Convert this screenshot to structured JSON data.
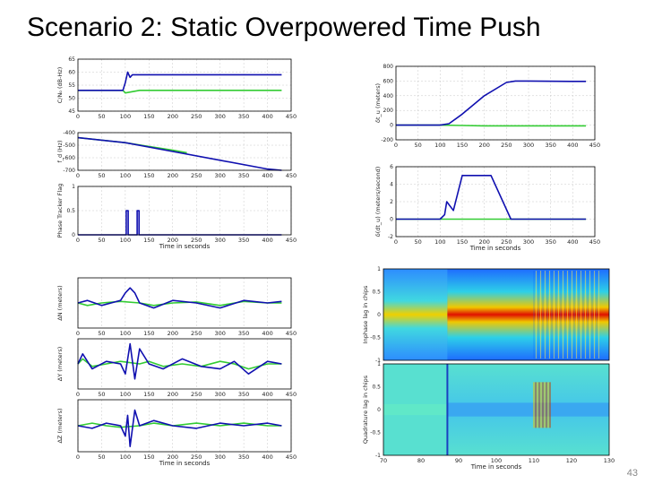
{
  "slide": {
    "title": "Scenario 2: Static Overpowered Time Push",
    "page_number": "43"
  },
  "colors": {
    "estimate": "#1010b0",
    "truth": "#33cc33",
    "axes": "#000000"
  },
  "chart_data": [
    {
      "id": "cn0",
      "type": "line",
      "ylabel": "C/N₀ (dB-Hz)",
      "xlabel": "",
      "xlim": [
        0,
        450
      ],
      "ylim": [
        45,
        65
      ],
      "xticks": [
        0,
        50,
        100,
        150,
        200,
        250,
        300,
        350,
        400,
        450
      ],
      "yticks": [
        45,
        50,
        55,
        60,
        65
      ],
      "series": [
        {
          "name": "blue",
          "x": [
            0,
            50,
            95,
            100,
            105,
            110,
            115,
            130,
            200,
            300,
            400,
            430
          ],
          "y": [
            53,
            53,
            53,
            56,
            60,
            58,
            59,
            59,
            59,
            59,
            59,
            59
          ]
        },
        {
          "name": "green",
          "x": [
            0,
            50,
            95,
            100,
            130,
            200,
            300,
            400,
            430
          ],
          "y": [
            53,
            53,
            53,
            52,
            53,
            53,
            53,
            53,
            53
          ]
        }
      ]
    },
    {
      "id": "fd",
      "type": "line",
      "ylabel": "f_d (Hz)",
      "xlabel": "",
      "xlim": [
        0,
        450
      ],
      "ylim": [
        -700,
        -400
      ],
      "xticks": [
        0,
        50,
        100,
        150,
        200,
        250,
        300,
        350,
        400,
        450
      ],
      "yticks": [
        -400,
        -500,
        -600,
        -700
      ],
      "series": [
        {
          "name": "blue",
          "x": [
            0,
            100,
            200,
            300,
            400,
            430
          ],
          "y": [
            -440,
            -480,
            -550,
            -620,
            -690,
            -700
          ]
        },
        {
          "name": "green",
          "x": [
            0,
            100,
            150,
            200,
            230
          ],
          "y": [
            -440,
            -480,
            -510,
            -540,
            -560
          ]
        }
      ]
    },
    {
      "id": "phase",
      "type": "line",
      "ylabel": "Phase Tracker Flag",
      "xlabel": "Time in seconds",
      "xlim": [
        0,
        450
      ],
      "ylim": [
        0,
        1
      ],
      "xticks": [
        0,
        50,
        100,
        150,
        200,
        250,
        300,
        350,
        400,
        450
      ],
      "yticks": [
        0,
        0.5,
        1
      ],
      "ytick_labels": [
        "0",
        "0.5",
        "1"
      ],
      "series": [
        {
          "name": "blue",
          "x": [
            0,
            102,
            102,
            106,
            106,
            125,
            125,
            129,
            129,
            430
          ],
          "y": [
            0,
            0,
            0.5,
            0.5,
            0,
            0,
            0.5,
            0.5,
            0,
            0
          ]
        }
      ]
    },
    {
      "id": "dn",
      "type": "line",
      "ylabel": "ΔN (meters)",
      "xlabel": "",
      "xlim": [
        0,
        450
      ],
      "ylim": [
        -5,
        5
      ],
      "xticks": [
        0,
        50,
        100,
        150,
        200,
        250,
        300,
        350,
        400,
        450
      ],
      "yticks": [],
      "series": [
        {
          "name": "blue",
          "x": [
            0,
            20,
            50,
            90,
            100,
            110,
            120,
            130,
            160,
            200,
            250,
            300,
            350,
            400,
            430
          ],
          "y": [
            0,
            0.5,
            -0.5,
            0.5,
            2,
            3,
            2,
            0,
            -1,
            0.5,
            0,
            -1,
            0.5,
            0,
            0.3
          ]
        },
        {
          "name": "green",
          "x": [
            0,
            20,
            50,
            90,
            130,
            160,
            200,
            250,
            300,
            350,
            400,
            430
          ],
          "y": [
            0,
            -0.5,
            0,
            0.3,
            0,
            -0.5,
            0,
            0.2,
            -0.5,
            0.3,
            0,
            0
          ]
        }
      ]
    },
    {
      "id": "de",
      "type": "line",
      "ylabel": "ΔY (meters)",
      "xlabel": "",
      "xlim": [
        0,
        450
      ],
      "ylim": [
        -5,
        5
      ],
      "xticks": [
        0,
        50,
        100,
        150,
        200,
        250,
        300,
        350,
        400,
        450
      ],
      "yticks": [],
      "series": [
        {
          "name": "blue",
          "x": [
            0,
            10,
            30,
            60,
            90,
            100,
            110,
            120,
            130,
            150,
            180,
            220,
            260,
            300,
            330,
            360,
            400,
            430
          ],
          "y": [
            0,
            2,
            -1,
            0.5,
            0,
            -2,
            4,
            -3,
            3,
            0,
            -1,
            1,
            -0.5,
            -1,
            0.5,
            -2,
            0.5,
            0
          ]
        },
        {
          "name": "green",
          "x": [
            0,
            10,
            30,
            60,
            90,
            130,
            150,
            180,
            220,
            260,
            300,
            330,
            360,
            400,
            430
          ],
          "y": [
            0,
            1,
            -0.5,
            0,
            0.5,
            0,
            0.5,
            -0.5,
            0,
            -0.5,
            0.5,
            0,
            -1,
            0,
            0
          ]
        }
      ]
    },
    {
      "id": "dz",
      "type": "line",
      "ylabel": "ΔZ (meters)",
      "xlabel": "Time in seconds",
      "xlim": [
        0,
        450
      ],
      "ylim": [
        -5,
        5
      ],
      "xticks": [
        0,
        50,
        100,
        150,
        200,
        250,
        300,
        350,
        400,
        450
      ],
      "yticks": [],
      "series": [
        {
          "name": "blue",
          "x": [
            0,
            30,
            60,
            90,
            100,
            105,
            110,
            120,
            130,
            160,
            200,
            250,
            300,
            350,
            400,
            430
          ],
          "y": [
            0,
            -0.5,
            0.5,
            0,
            -2,
            2,
            -4,
            3,
            0,
            1,
            0,
            -0.5,
            0.5,
            0,
            0.5,
            0
          ]
        },
        {
          "name": "green",
          "x": [
            0,
            30,
            60,
            90,
            130,
            160,
            200,
            250,
            300,
            350,
            400,
            430
          ],
          "y": [
            0,
            0.5,
            0,
            -0.3,
            0,
            0.5,
            0,
            0.5,
            0,
            0.5,
            0,
            0
          ]
        }
      ]
    },
    {
      "id": "dtpos",
      "type": "line",
      "ylabel": "δt_u (meters)",
      "xlabel": "",
      "xlim": [
        0,
        450
      ],
      "ylim": [
        -200,
        800
      ],
      "xticks": [
        0,
        50,
        100,
        150,
        200,
        250,
        300,
        350,
        400,
        450
      ],
      "yticks": [
        -200,
        0,
        200,
        400,
        600,
        800
      ],
      "series": [
        {
          "name": "blue",
          "x": [
            0,
            100,
            120,
            150,
            200,
            250,
            270,
            300,
            400,
            430
          ],
          "y": [
            0,
            0,
            20,
            150,
            400,
            580,
            600,
            600,
            595,
            595
          ]
        },
        {
          "name": "green",
          "x": [
            0,
            100,
            150,
            200,
            300,
            430
          ],
          "y": [
            0,
            0,
            -5,
            -10,
            -10,
            -10
          ]
        }
      ]
    },
    {
      "id": "dtrate",
      "type": "line",
      "ylabel": "δ(dt_u) (meters/second)",
      "xlabel": "Time in seconds",
      "xlim": [
        0,
        450
      ],
      "ylim": [
        -2,
        6
      ],
      "xticks": [
        0,
        50,
        100,
        150,
        200,
        250,
        300,
        350,
        400,
        450
      ],
      "yticks": [
        -2,
        0,
        2,
        4,
        6
      ],
      "series": [
        {
          "name": "blue",
          "x": [
            0,
            100,
            110,
            115,
            130,
            150,
            210,
            215,
            260,
            300,
            430
          ],
          "y": [
            0,
            0,
            0.5,
            2,
            1,
            5,
            5,
            5,
            0,
            0,
            0
          ]
        },
        {
          "name": "green",
          "x": [
            0,
            100,
            200,
            300,
            430
          ],
          "y": [
            0,
            0,
            0,
            0,
            0
          ]
        }
      ]
    },
    {
      "id": "inphase",
      "type": "heatmap",
      "ylabel": "Inphase lag in chips",
      "xlabel": "",
      "xlim": [
        70,
        130
      ],
      "ylim": [
        -1,
        1
      ],
      "yticks": [
        1,
        0.5,
        0,
        -0.5,
        -1
      ],
      "ytick_labels": [
        "1",
        "0.5",
        "0",
        "-0.5",
        "-1"
      ],
      "xticks": [],
      "colormap": "jet",
      "description_values": {
        "peak_lag": 0,
        "event_times": [
          87,
          110
        ]
      }
    },
    {
      "id": "quad",
      "type": "heatmap",
      "ylabel": "Quadrature lag in chips",
      "xlabel": "Time in seconds",
      "xlim": [
        70,
        130
      ],
      "ylim": [
        -1,
        1
      ],
      "xticks": [
        70,
        80,
        90,
        100,
        110,
        120,
        130
      ],
      "yticks": [
        1,
        0.5,
        0,
        -0.5,
        -1
      ],
      "ytick_labels": [
        "1",
        "0.5",
        "0",
        "-0.5",
        "-1"
      ],
      "colormap": "jet",
      "description_values": {
        "event_times": [
          87,
          110
        ]
      }
    }
  ]
}
